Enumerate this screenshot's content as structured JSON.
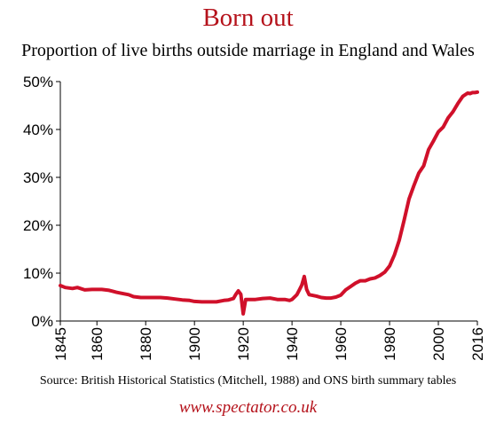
{
  "header": {
    "title": "Born out",
    "subtitle": "Proportion of live births outside marriage in England and Wales"
  },
  "footer": {
    "source": "Source: British Historical Statistics (Mitchell, 1988) and ONS birth summary tables",
    "website": "www.spectator.co.uk"
  },
  "colors": {
    "accent": "#b5121b",
    "line": "#d0102a",
    "axis": "#000000"
  },
  "chart_data": {
    "type": "line",
    "title": "Born out",
    "subtitle": "Proportion of live births outside marriage in England and Wales",
    "xlabel": "",
    "ylabel": "",
    "xlim": [
      1845,
      2016
    ],
    "ylim": [
      0,
      50
    ],
    "x_ticks": [
      1845,
      1860,
      1880,
      1900,
      1920,
      1940,
      1960,
      1980,
      2000,
      2016
    ],
    "x_tick_labels": [
      "1845",
      "1860",
      "1880",
      "1900",
      "1920",
      "1940",
      "1960",
      "1980",
      "2000",
      "2016"
    ],
    "y_ticks": [
      0,
      10,
      20,
      30,
      40,
      50
    ],
    "y_tick_labels": [
      "0%",
      "10%",
      "20%",
      "30%",
      "40%",
      "50%"
    ],
    "grid": false,
    "series": [
      {
        "x": [
          1845,
          1847,
          1850,
          1852,
          1855,
          1858,
          1860,
          1862,
          1865,
          1868,
          1870,
          1873,
          1875,
          1878,
          1880,
          1883,
          1886,
          1889,
          1892,
          1895,
          1898,
          1900,
          1903,
          1906,
          1909,
          1912,
          1914,
          1916,
          1917,
          1918,
          1919,
          1920,
          1921,
          1922,
          1925,
          1928,
          1931,
          1934,
          1937,
          1939,
          1940,
          1942,
          1943,
          1944,
          1945,
          1946,
          1947,
          1948,
          1950,
          1952,
          1954,
          1956,
          1958,
          1960,
          1962,
          1964,
          1966,
          1968,
          1970,
          1972,
          1974,
          1976,
          1978,
          1980,
          1982,
          1984,
          1986,
          1988,
          1990,
          1992,
          1994,
          1996,
          1998,
          2000,
          2002,
          2004,
          2006,
          2008,
          2010,
          2012,
          2013,
          2014,
          2015,
          2016
        ],
        "values": [
          7.4,
          7.0,
          6.8,
          7.0,
          6.5,
          6.6,
          6.6,
          6.6,
          6.4,
          6.0,
          5.8,
          5.5,
          5.1,
          4.9,
          4.9,
          4.9,
          4.9,
          4.8,
          4.6,
          4.4,
          4.3,
          4.1,
          4.0,
          4.0,
          4.0,
          4.3,
          4.4,
          4.7,
          5.6,
          6.3,
          5.6,
          1.5,
          4.5,
          4.5,
          4.5,
          4.7,
          4.8,
          4.5,
          4.5,
          4.3,
          4.5,
          5.5,
          6.5,
          7.5,
          9.3,
          6.6,
          5.5,
          5.4,
          5.2,
          4.9,
          4.8,
          4.8,
          5.0,
          5.4,
          6.5,
          7.2,
          7.9,
          8.4,
          8.4,
          8.8,
          9.0,
          9.5,
          10.2,
          11.5,
          13.8,
          16.9,
          21.1,
          25.5,
          28.3,
          30.9,
          32.4,
          35.8,
          37.6,
          39.5,
          40.5,
          42.4,
          43.7,
          45.4,
          46.9,
          47.6,
          47.5,
          47.7,
          47.7,
          47.8
        ]
      }
    ]
  }
}
